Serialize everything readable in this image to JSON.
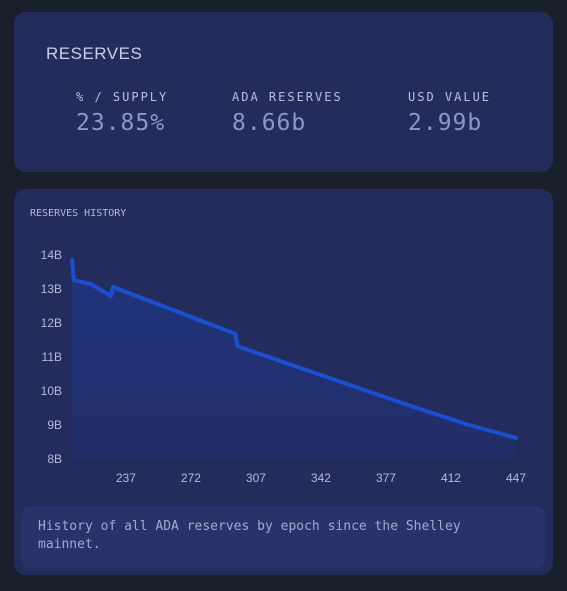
{
  "header": {
    "title": "RESERVES"
  },
  "stats": [
    {
      "label": "% / SUPPLY",
      "value": "23.85%"
    },
    {
      "label": "ADA RESERVES",
      "value": "8.66b"
    },
    {
      "label": "USD VALUE",
      "value": "2.99b"
    }
  ],
  "chart_data": {
    "type": "line",
    "title": "RESERVES HISTORY",
    "color": "#1a4fd0",
    "x": [
      208,
      209,
      218,
      229,
      230,
      296,
      297,
      342,
      387,
      420,
      447
    ],
    "values": [
      13.88,
      13.29,
      13.18,
      12.82,
      13.09,
      11.71,
      11.35,
      10.5,
      9.65,
      9.06,
      8.65
    ],
    "xlim": [
      208,
      447
    ],
    "xticks": [
      237,
      272,
      307,
      342,
      377,
      412,
      447
    ],
    "ylim": [
      8,
      14.1
    ],
    "yticks": [
      {
        "value": 8,
        "label": "8B"
      },
      {
        "value": 9,
        "label": "9B"
      },
      {
        "value": 10,
        "label": "10B"
      },
      {
        "value": 11,
        "label": "11B"
      },
      {
        "value": 12,
        "label": "12B"
      },
      {
        "value": 13,
        "label": "13B"
      },
      {
        "value": 14,
        "label": "14B"
      }
    ],
    "grid": false
  },
  "footer": {
    "text": "History of all ADA reserves by epoch since the Shelley mainnet."
  }
}
